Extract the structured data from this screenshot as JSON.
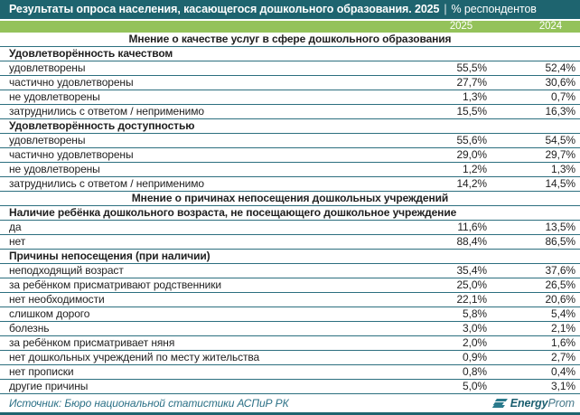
{
  "header": {
    "separator": "|"
  },
  "chart_data": {
    "type": "table",
    "title": "Результаты опроса населения, касающегося дошкольного образования. 2025",
    "unit": "% респондентов",
    "column_headers": [
      "2025",
      "2024"
    ],
    "rows": [
      {
        "kind": "group-title",
        "label": "Мнение о качестве услуг в сфере дошкольного образования"
      },
      {
        "kind": "section",
        "label": "Удовлетворённость качеством"
      },
      {
        "kind": "data",
        "label": "удовлетворены",
        "values": [
          "55,5%",
          "52,4%"
        ]
      },
      {
        "kind": "data",
        "label": "частично удовлетворены",
        "values": [
          "27,7%",
          "30,6%"
        ]
      },
      {
        "kind": "data",
        "label": "не удовлетворены",
        "values": [
          "1,3%",
          "0,7%"
        ]
      },
      {
        "kind": "data",
        "label": "затруднились с ответом / неприменимо",
        "values": [
          "15,5%",
          "16,3%"
        ]
      },
      {
        "kind": "section",
        "label": "Удовлетворённость доступностью"
      },
      {
        "kind": "data",
        "label": "удовлетворены",
        "values": [
          "55,6%",
          "54,5%"
        ]
      },
      {
        "kind": "data",
        "label": "частично удовлетворены",
        "values": [
          "29,0%",
          "29,7%"
        ]
      },
      {
        "kind": "data",
        "label": "не удовлетворены",
        "values": [
          "1,2%",
          "1,3%"
        ]
      },
      {
        "kind": "data",
        "label": "затруднились с ответом / неприменимо",
        "values": [
          "14,2%",
          "14,5%"
        ]
      },
      {
        "kind": "group-title",
        "label": "Мнение о причинах непосещения дошкольных учреждений"
      },
      {
        "kind": "section",
        "label": "Наличие ребёнка дошкольного возраста, не посещающего дошкольное учреждение"
      },
      {
        "kind": "data",
        "label": "да",
        "values": [
          "11,6%",
          "13,5%"
        ]
      },
      {
        "kind": "data",
        "label": "нет",
        "values": [
          "88,4%",
          "86,5%"
        ]
      },
      {
        "kind": "section",
        "label": "Причины непосещения (при наличии)"
      },
      {
        "kind": "data",
        "label": "неподходящий возраст",
        "values": [
          "35,4%",
          "37,6%"
        ]
      },
      {
        "kind": "data",
        "label": "за ребёнком присматривают родственники",
        "values": [
          "25,0%",
          "26,5%"
        ]
      },
      {
        "kind": "data",
        "label": "нет необходимости",
        "values": [
          "22,1%",
          "20,6%"
        ]
      },
      {
        "kind": "data",
        "label": "слишком дорого",
        "values": [
          "5,8%",
          "5,4%"
        ]
      },
      {
        "kind": "data",
        "label": "болезнь",
        "values": [
          "3,0%",
          "2,1%"
        ]
      },
      {
        "kind": "data",
        "label": "за ребёнком присматривает няня",
        "values": [
          "2,0%",
          "1,6%"
        ]
      },
      {
        "kind": "data",
        "label": "нет дошкольных учреждений по месту жительства",
        "values": [
          "0,9%",
          "2,7%"
        ]
      },
      {
        "kind": "data",
        "label": "нет прописки",
        "values": [
          "0,8%",
          "0,4%"
        ]
      },
      {
        "kind": "data",
        "label": "другие причины",
        "values": [
          "5,0%",
          "3,1%"
        ]
      }
    ]
  },
  "footer": {
    "source": "Источник: Бюро национальной статистики АСПиР РК",
    "logo_bold": "Energy",
    "logo_light": "Prom"
  },
  "colors": {
    "header_teal": "#1e646f",
    "year_bar_green": "#94c25a",
    "row_border": "#2c6f7f",
    "source_text": "#2b7086",
    "logo_teal": "#1b5f70"
  }
}
